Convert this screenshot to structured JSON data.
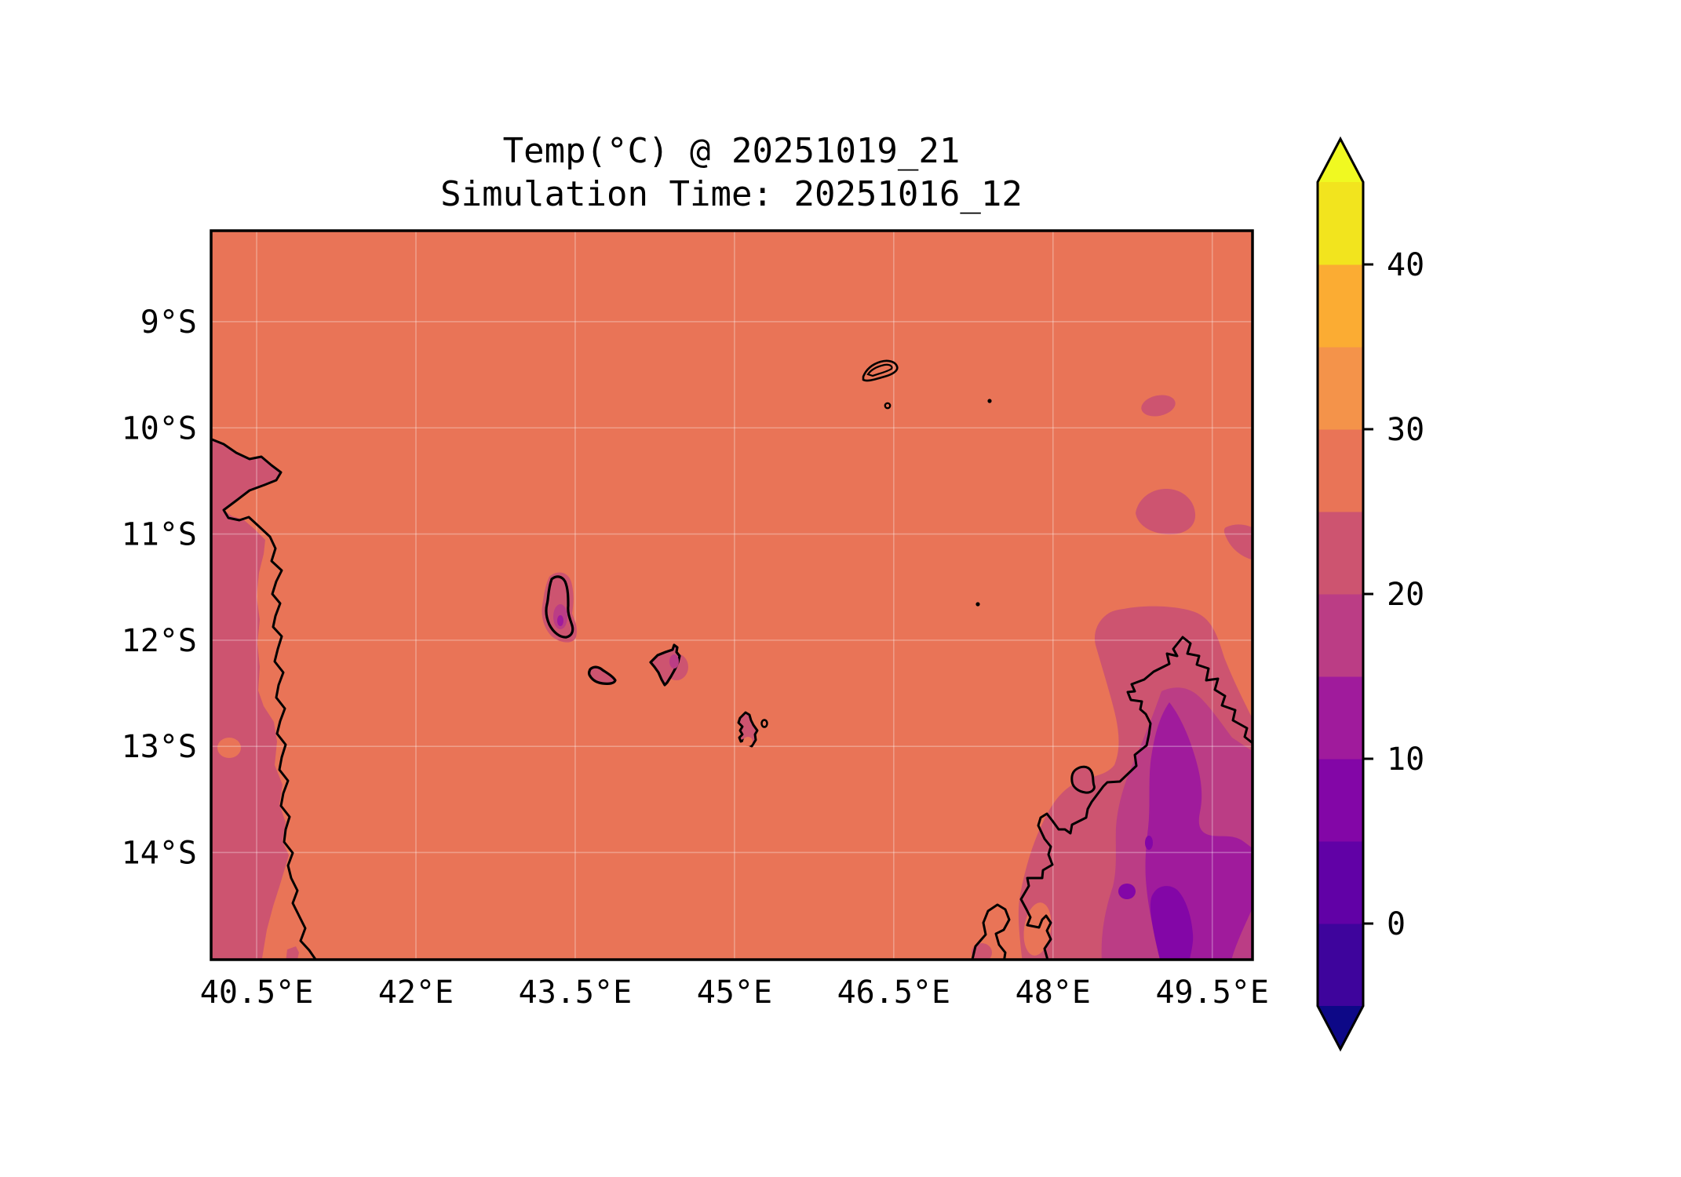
{
  "title": {
    "line1": "Temp(°C) @ 20251019_21",
    "line2": "Simulation Time: 20251016_12"
  },
  "x_axis": {
    "tick_labels": [
      "40.5°E",
      "42°E",
      "43.5°E",
      "45°E",
      "46.5°E",
      "48°E",
      "49.5°E"
    ],
    "tick_lons": [
      40.5,
      42.0,
      43.5,
      45.0,
      46.5,
      48.0,
      49.5
    ]
  },
  "y_axis": {
    "tick_labels": [
      "9°S",
      "10°S",
      "11°S",
      "12°S",
      "13°S",
      "14°S"
    ],
    "tick_lats": [
      9,
      10,
      11,
      12,
      13,
      14
    ]
  },
  "map_extent": {
    "lon_min": 40.071,
    "lon_max": 49.879,
    "lat_min": 8.143,
    "lat_max": 15.009
  },
  "palette": {
    "ocean": "#E97457",
    "band_20_25": "#CD5470",
    "band_15_20": "#BB3D85",
    "band_10_15": "#A01B9C",
    "band_5_10": "#8306A7",
    "band_0_5": "#6101A6",
    "coastline": "#000000",
    "gridline": "rgba(255,255,255,0.30)"
  },
  "colorbar": {
    "levels": [
      -5,
      0,
      5,
      10,
      15,
      20,
      25,
      30,
      35,
      40,
      45
    ],
    "colors": [
      "#3E049C",
      "#6101A6",
      "#8306A7",
      "#A01B9C",
      "#BB3D85",
      "#CD5470",
      "#E97457",
      "#F4934A",
      "#FBAC33",
      "#F2E41E"
    ],
    "under_color": "#0D0887",
    "over_color": "#F0F921",
    "extend": "both",
    "tick_labels": [
      "40",
      "30",
      "20",
      "10",
      "0"
    ],
    "tick_values": [
      40,
      30,
      20,
      10,
      0
    ]
  },
  "chart_data": {
    "type": "heatmap",
    "title": "Temp(°C) @ 20251019_21",
    "subtitle": "Simulation Time: 20251016_12",
    "variable": "Temperature",
    "units": "°C",
    "valid_time": "20251019_21",
    "simulation_time": "20251016_12",
    "projection": "PlateCarree",
    "x": {
      "tick_labels": [
        "40.5°E",
        "42°E",
        "43.5°E",
        "45°E",
        "46.5°E",
        "48°E",
        "49.5°E"
      ],
      "range_deg_east": [
        40.07,
        49.88
      ]
    },
    "y": {
      "tick_labels": [
        "9°S",
        "10°S",
        "11°S",
        "12°S",
        "13°S",
        "14°S"
      ],
      "range_deg_south": [
        8.14,
        15.01
      ]
    },
    "contour_levels_c": [
      -5,
      0,
      5,
      10,
      15,
      20,
      25,
      30,
      35,
      40,
      45
    ],
    "colormap": "plasma (discrete, extend both)",
    "legend_position": "right colorbar",
    "grid": true,
    "regions": [
      {
        "name": "open ocean (most of domain)",
        "temp_c": "25-30"
      },
      {
        "name": "mozambique coastal land strip (west edge)",
        "temp_c": "20-25"
      },
      {
        "name": "mozambique inland warm spots",
        "temp_c": "25-30"
      },
      {
        "name": "ocean cool patches NE of madagascar",
        "temp_c": "20-25"
      },
      {
        "name": "north madagascar coastal band",
        "temp_c": "20-25"
      },
      {
        "name": "madagascar inland band",
        "temp_c": "15-20"
      },
      {
        "name": "madagascar interior highlands",
        "temp_c": "10-15"
      },
      {
        "name": "madagascar highest interior patches",
        "temp_c": "5-10"
      },
      {
        "name": "grande comore island",
        "temp_c": "15-25"
      },
      {
        "name": "anjouan / moheli / mayotte islands",
        "temp_c": "20-25"
      }
    ]
  }
}
